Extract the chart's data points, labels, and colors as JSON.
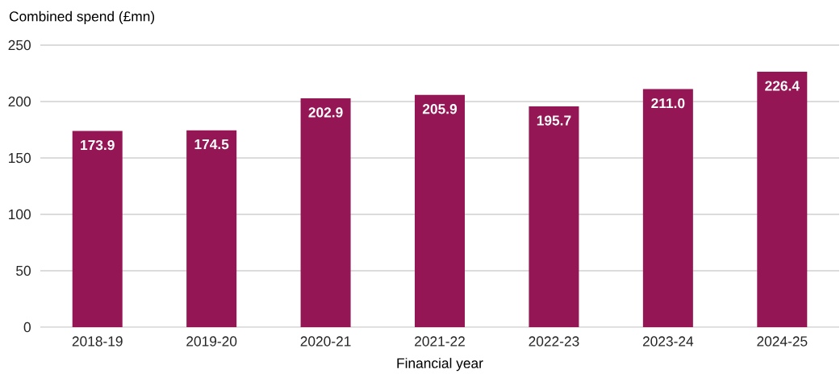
{
  "chart_data": {
    "type": "bar",
    "ylabel": "Combined spend (£mn)",
    "xlabel": "Financial year",
    "categories": [
      "2018-19",
      "2019-20",
      "2020-21",
      "2021-22",
      "2022-23",
      "2023-24",
      "2024-25"
    ],
    "values": [
      173.9,
      174.5,
      202.9,
      205.9,
      195.7,
      211.0,
      226.4
    ],
    "value_labels": [
      "173.9",
      "174.5",
      "202.9",
      "205.9",
      "195.7",
      "211.0",
      "226.4"
    ],
    "color": "#941654",
    "ylim": [
      0,
      250
    ],
    "yticks": [
      0,
      50,
      100,
      150,
      200,
      250
    ],
    "grid": "y"
  }
}
